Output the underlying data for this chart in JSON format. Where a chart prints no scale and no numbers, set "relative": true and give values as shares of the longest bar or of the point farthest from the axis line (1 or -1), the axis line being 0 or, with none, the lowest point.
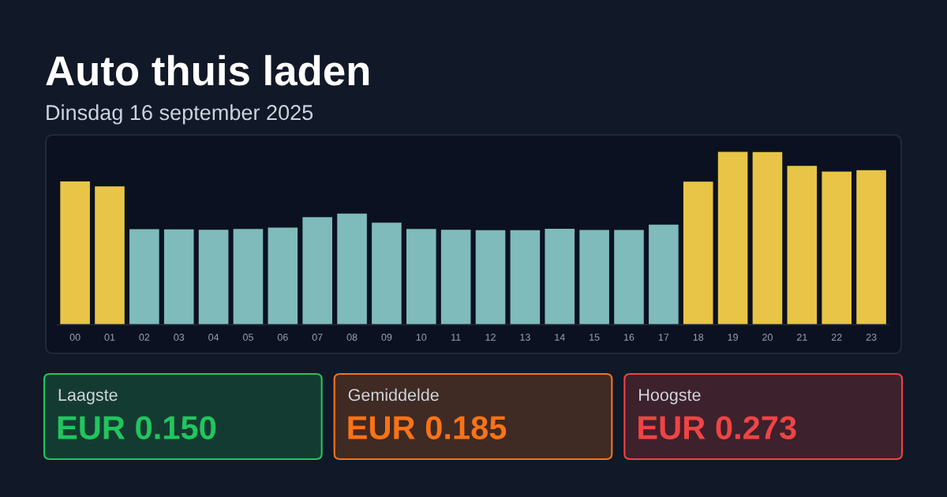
{
  "chart_data": [
    {
      "type": "bar",
      "title": "Auto thuis laden",
      "subtitle": "Dinsdag 16 september 2025",
      "relative": true,
      "categories": [
        "00",
        "01",
        "02",
        "03",
        "04",
        "05",
        "06",
        "07",
        "08",
        "09",
        "10",
        "11",
        "12",
        "13",
        "14",
        "15",
        "16",
        "17",
        "18",
        "19",
        "20",
        "21",
        "22",
        "23"
      ],
      "values": [
        0.829,
        0.8,
        0.552,
        0.551,
        0.549,
        0.554,
        0.562,
        0.622,
        0.643,
        0.59,
        0.554,
        0.549,
        0.547,
        0.547,
        0.555,
        0.548,
        0.548,
        0.579,
        0.827,
        1.0,
        0.998,
        0.918,
        0.886,
        0.894
      ],
      "colors": [
        "#e8c547",
        "#e8c547",
        "#7fbbbb",
        "#7fbbbb",
        "#7fbbbb",
        "#7fbbbb",
        "#7fbbbb",
        "#7fbbbb",
        "#7fbbbb",
        "#7fbbbb",
        "#7fbbbb",
        "#7fbbbb",
        "#7fbbbb",
        "#7fbbbb",
        "#7fbbbb",
        "#7fbbbb",
        "#7fbbbb",
        "#7fbbbb",
        "#e8c547",
        "#e8c547",
        "#e8c547",
        "#e8c547",
        "#e8c547",
        "#e8c547"
      ]
    },
    {
      "type": "other",
      "title": "Laagste",
      "annotations": [
        "EUR 0.150"
      ],
      "color": "#22c55e"
    },
    {
      "type": "other",
      "title": "Gemiddelde",
      "annotations": [
        "EUR 0.185"
      ],
      "color": "#f97316"
    },
    {
      "type": "other",
      "title": "Hoogste",
      "annotations": [
        "EUR 0.273"
      ],
      "color": "#ef4444"
    }
  ]
}
